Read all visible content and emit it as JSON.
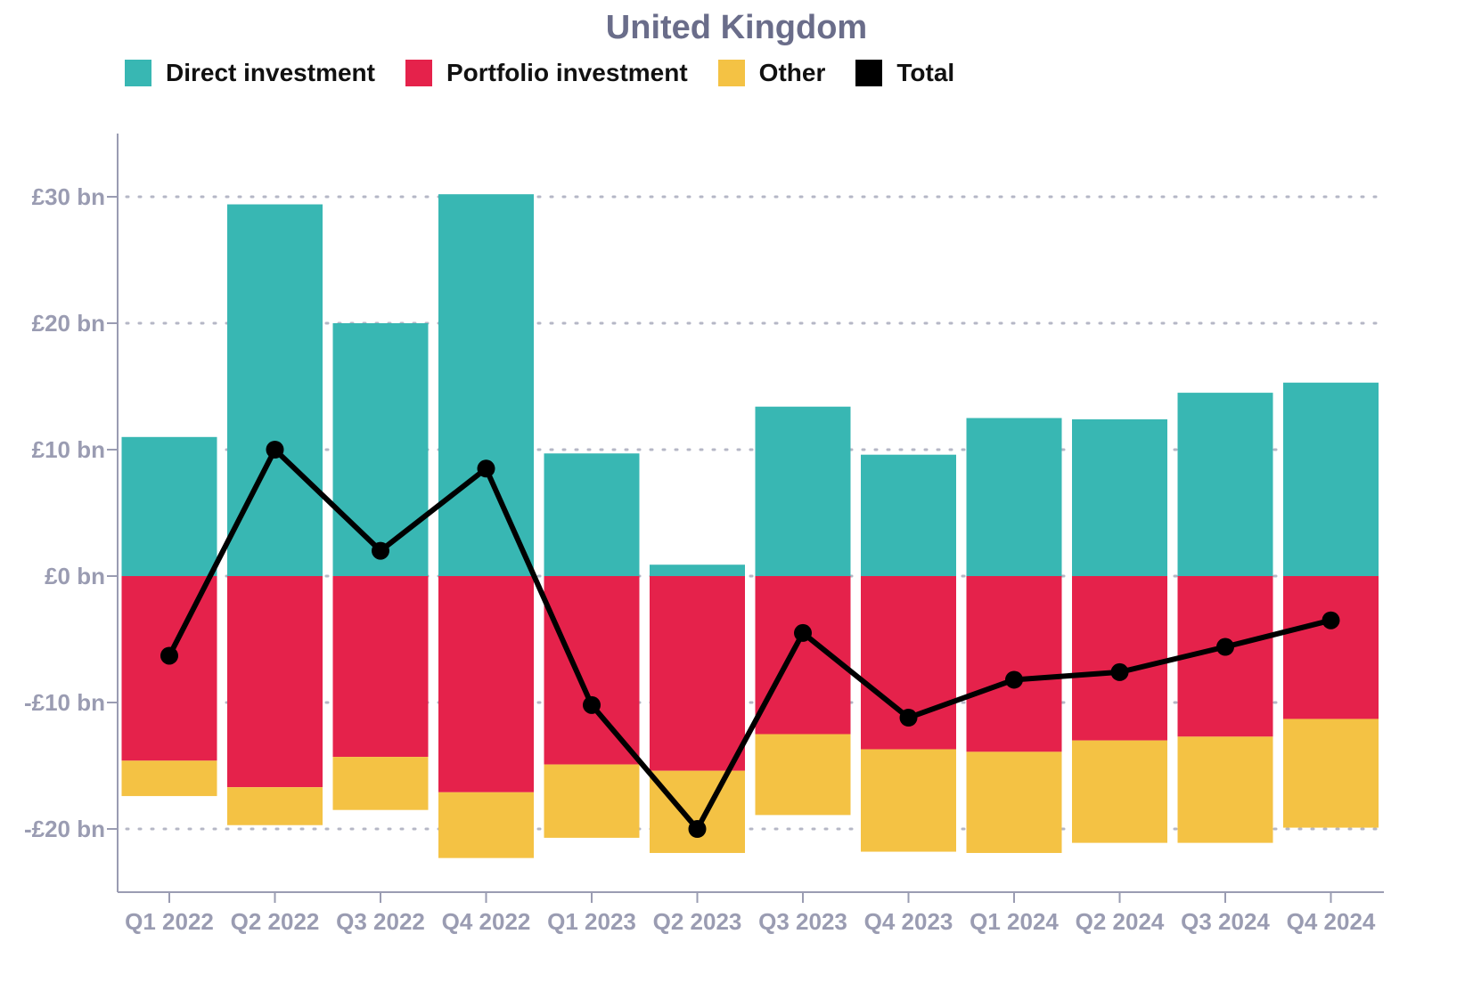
{
  "colors": {
    "direct": "#38b7b3",
    "portfolio": "#e5224b",
    "other": "#f4c244",
    "total": "#000000",
    "axis": "#9a9cb2",
    "grid": "#b5b7c6"
  },
  "chart_data": {
    "type": "bar",
    "stacked": true,
    "title": "United Kingdom",
    "legend_position": "top-left",
    "grid": true,
    "ylim": [
      -25,
      35
    ],
    "yticks": [
      -20,
      -10,
      0,
      10,
      20,
      30
    ],
    "ytick_labels": [
      "-£20 bn",
      "-£10 bn",
      "£0 bn",
      "£10 bn",
      "£20 bn",
      "£30 bn"
    ],
    "categories": [
      "Q1 2022",
      "Q2 2022",
      "Q3 2022",
      "Q4 2022",
      "Q1 2023",
      "Q2 2023",
      "Q3 2023",
      "Q4 2023",
      "Q1 2024",
      "Q2 2024",
      "Q3 2024",
      "Q4 2024"
    ],
    "series": [
      {
        "name": "Direct investment",
        "key": "direct",
        "kind": "bar",
        "values": [
          11.0,
          29.4,
          20.0,
          30.2,
          9.7,
          0.9,
          13.4,
          9.6,
          12.5,
          12.4,
          14.5,
          15.3
        ]
      },
      {
        "name": "Portfolio investment",
        "key": "portfolio",
        "kind": "bar",
        "values": [
          -14.6,
          -16.7,
          -14.3,
          -17.1,
          -14.9,
          -15.4,
          -12.5,
          -13.7,
          -13.9,
          -13.0,
          -12.7,
          -11.3
        ]
      },
      {
        "name": "Other",
        "key": "other",
        "kind": "bar",
        "values": [
          -2.8,
          -3.0,
          -4.2,
          -5.2,
          -5.8,
          -6.5,
          -6.4,
          -8.1,
          -8.0,
          -8.1,
          -8.4,
          -8.6
        ]
      },
      {
        "name": "Total",
        "key": "total",
        "kind": "line",
        "values": [
          -6.3,
          10.0,
          2.0,
          8.5,
          -10.2,
          -20.0,
          -4.5,
          -11.2,
          -8.2,
          -7.6,
          -5.6,
          -3.5
        ]
      }
    ]
  }
}
